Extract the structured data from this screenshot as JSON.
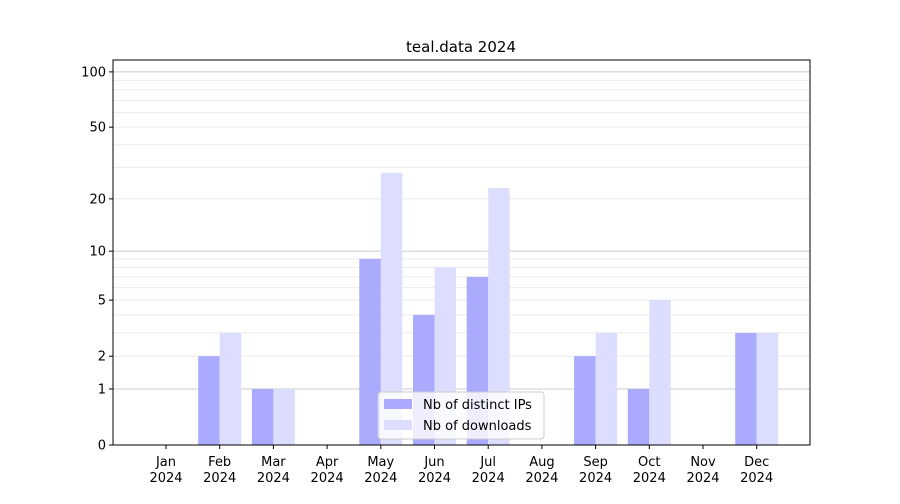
{
  "chart_data": {
    "type": "bar",
    "title": "teal.data 2024",
    "xlabel": "",
    "ylabel": "",
    "y_scale": "log(1+y)",
    "ylim": [
      0,
      116
    ],
    "yticks": [
      0,
      1,
      2,
      5,
      10,
      20,
      50,
      100
    ],
    "grid": true,
    "legend_position": "bottom-center",
    "categories": [
      [
        "Jan",
        "2024"
      ],
      [
        "Feb",
        "2024"
      ],
      [
        "Mar",
        "2024"
      ],
      [
        "Apr",
        "2024"
      ],
      [
        "May",
        "2024"
      ],
      [
        "Jun",
        "2024"
      ],
      [
        "Jul",
        "2024"
      ],
      [
        "Aug",
        "2024"
      ],
      [
        "Sep",
        "2024"
      ],
      [
        "Oct",
        "2024"
      ],
      [
        "Nov",
        "2024"
      ],
      [
        "Dec",
        "2024"
      ]
    ],
    "series": [
      {
        "name": "Nb of distinct IPs",
        "color": "#aaaaff",
        "values": [
          0,
          2,
          1,
          0,
          9,
          4,
          7,
          0,
          2,
          1,
          0,
          3
        ]
      },
      {
        "name": "Nb of downloads",
        "color": "#ddddff",
        "values": [
          0,
          3,
          1,
          0,
          28,
          8,
          23,
          0,
          3,
          5,
          0,
          3
        ]
      }
    ]
  }
}
